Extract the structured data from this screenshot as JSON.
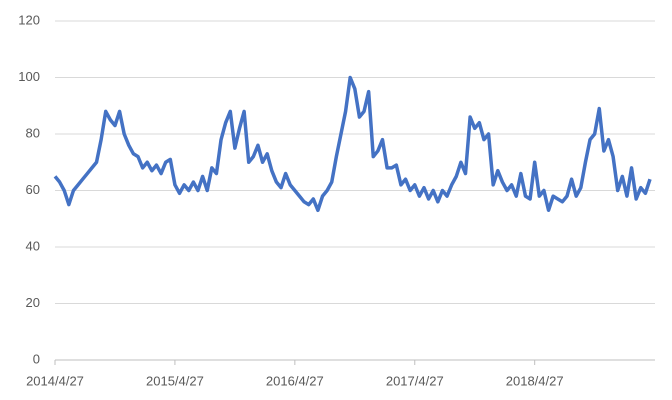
{
  "chart_data": {
    "type": "line",
    "categories": [
      "2014/4/27",
      null,
      null,
      null,
      null,
      null,
      null,
      null,
      null,
      null,
      null,
      null,
      null,
      null,
      null,
      null,
      null,
      null,
      null,
      null,
      null,
      null,
      null,
      null,
      null,
      null,
      "2015/4/27",
      null,
      null,
      null,
      null,
      null,
      null,
      null,
      null,
      null,
      null,
      null,
      null,
      null,
      null,
      null,
      null,
      null,
      null,
      null,
      null,
      null,
      null,
      null,
      null,
      null,
      "2016/4/27",
      null,
      null,
      null,
      null,
      null,
      null,
      null,
      null,
      null,
      null,
      null,
      null,
      null,
      null,
      null,
      null,
      null,
      null,
      null,
      null,
      null,
      null,
      null,
      null,
      null,
      "2017/4/27",
      null,
      null,
      null,
      null,
      null,
      null,
      null,
      null,
      null,
      null,
      null,
      null,
      null,
      null,
      null,
      null,
      null,
      null,
      null,
      null,
      null,
      null,
      null,
      null,
      null,
      "2018/4/27",
      null,
      null,
      null,
      null,
      null,
      null,
      null,
      null,
      null,
      null,
      null,
      null,
      null,
      null,
      null,
      null,
      null,
      null,
      null,
      null,
      null,
      null,
      null,
      null,
      null
    ],
    "values": [
      65,
      63,
      60,
      55,
      60,
      62,
      64,
      66,
      68,
      70,
      78,
      88,
      85,
      83,
      88,
      80,
      76,
      73,
      72,
      68,
      70,
      67,
      69,
      66,
      70,
      71,
      62,
      59,
      62,
      60,
      63,
      60,
      65,
      60,
      68,
      66,
      78,
      84,
      88,
      75,
      82,
      88,
      70,
      72,
      76,
      70,
      73,
      67,
      63,
      61,
      66,
      62,
      60,
      58,
      56,
      55,
      57,
      53,
      58,
      60,
      63,
      72,
      80,
      88,
      100,
      96,
      86,
      88,
      95,
      72,
      74,
      78,
      68,
      68,
      69,
      62,
      64,
      60,
      62,
      58,
      61,
      57,
      60,
      56,
      60,
      58,
      62,
      65,
      70,
      66,
      86,
      82,
      84,
      78,
      80,
      62,
      67,
      63,
      60,
      62,
      58,
      66,
      58,
      57,
      70,
      58,
      60,
      53,
      58,
      57,
      56,
      58,
      64,
      58,
      61,
      70,
      78,
      80,
      89,
      74,
      78,
      72,
      60,
      65,
      58,
      68,
      57,
      61,
      59,
      64
    ],
    "color": "#4472c4",
    "ylim": [
      0,
      120
    ],
    "yticks": [
      0,
      20,
      40,
      60,
      80,
      100,
      120
    ],
    "grid": true
  }
}
